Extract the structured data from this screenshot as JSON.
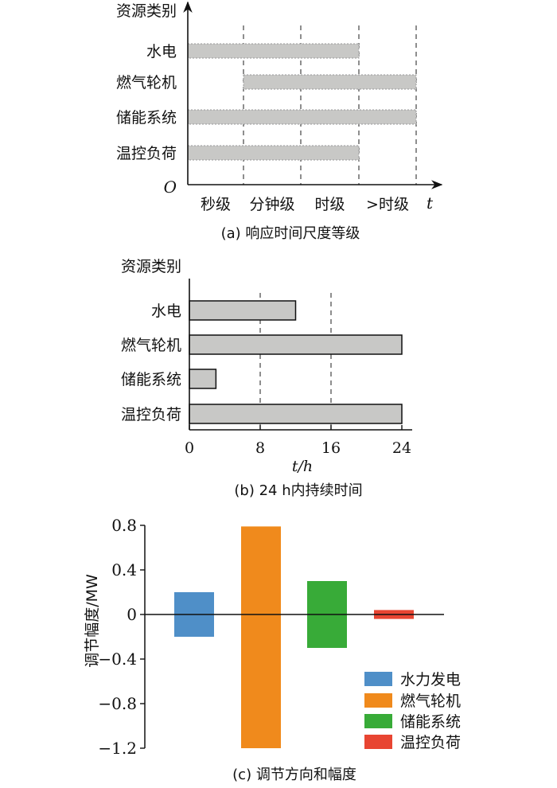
{
  "chart_data": [
    {
      "type": "bar",
      "orientation": "horizontal",
      "panel": "a",
      "caption": "(a)  响应时间尺度等级",
      "ylabel": "资源类别",
      "xlabel": "t",
      "origin_label": "O",
      "categories": [
        "水电",
        "燃气轮机",
        "储能系统",
        "温控负荷"
      ],
      "tick_labels": [
        "秒级",
        "分钟级",
        "时级",
        ">时级"
      ],
      "ranges": [
        {
          "category": "水电",
          "start": "秒级",
          "end": "时级"
        },
        {
          "category": "燃气轮机",
          "start": "分钟级",
          "end": ">时级"
        },
        {
          "category": "储能系统",
          "start": "秒级",
          "end": ">时级"
        },
        {
          "category": "温控负荷",
          "start": "秒级",
          "end": "时级"
        }
      ],
      "bar_color": "#c8c8c6",
      "grid": "dashed vertical"
    },
    {
      "type": "bar",
      "orientation": "horizontal",
      "panel": "b",
      "caption": "(b)  24 h内持续时间",
      "ylabel": "资源类别",
      "xlabel": "t/h",
      "categories": [
        "水电",
        "燃气轮机",
        "储能系统",
        "温控负荷"
      ],
      "values": [
        12,
        24,
        3,
        24
      ],
      "xlim": [
        0,
        24
      ],
      "xticks": [
        0,
        8,
        16,
        24
      ],
      "bar_color": "#c8c8c6",
      "grid": "dashed vertical at 8, 16"
    },
    {
      "type": "bar",
      "panel": "c",
      "caption": "(c)  调节方向和幅度",
      "ylabel": "调节幅度/MW",
      "ylim": [
        -1.2,
        0.8
      ],
      "yticks": [
        "0.8",
        "0.4",
        "0",
        "−0.4",
        "−0.8",
        "−1.2"
      ],
      "ytick_values": [
        0.8,
        0.4,
        0,
        -0.4,
        -0.8,
        -1.2
      ],
      "legend_position": "bottom-right",
      "series": [
        {
          "name": "水力发电",
          "up": 0.2,
          "down": -0.2,
          "color": "#4f8fc8"
        },
        {
          "name": "燃气轮机",
          "up": 0.79,
          "down": -1.2,
          "color": "#f08a1c"
        },
        {
          "name": "储能系统",
          "up": 0.3,
          "down": -0.3,
          "color": "#38ab38"
        },
        {
          "name": "温控负荷",
          "up": 0.04,
          "down": -0.04,
          "color": "#e84532"
        }
      ]
    }
  ]
}
